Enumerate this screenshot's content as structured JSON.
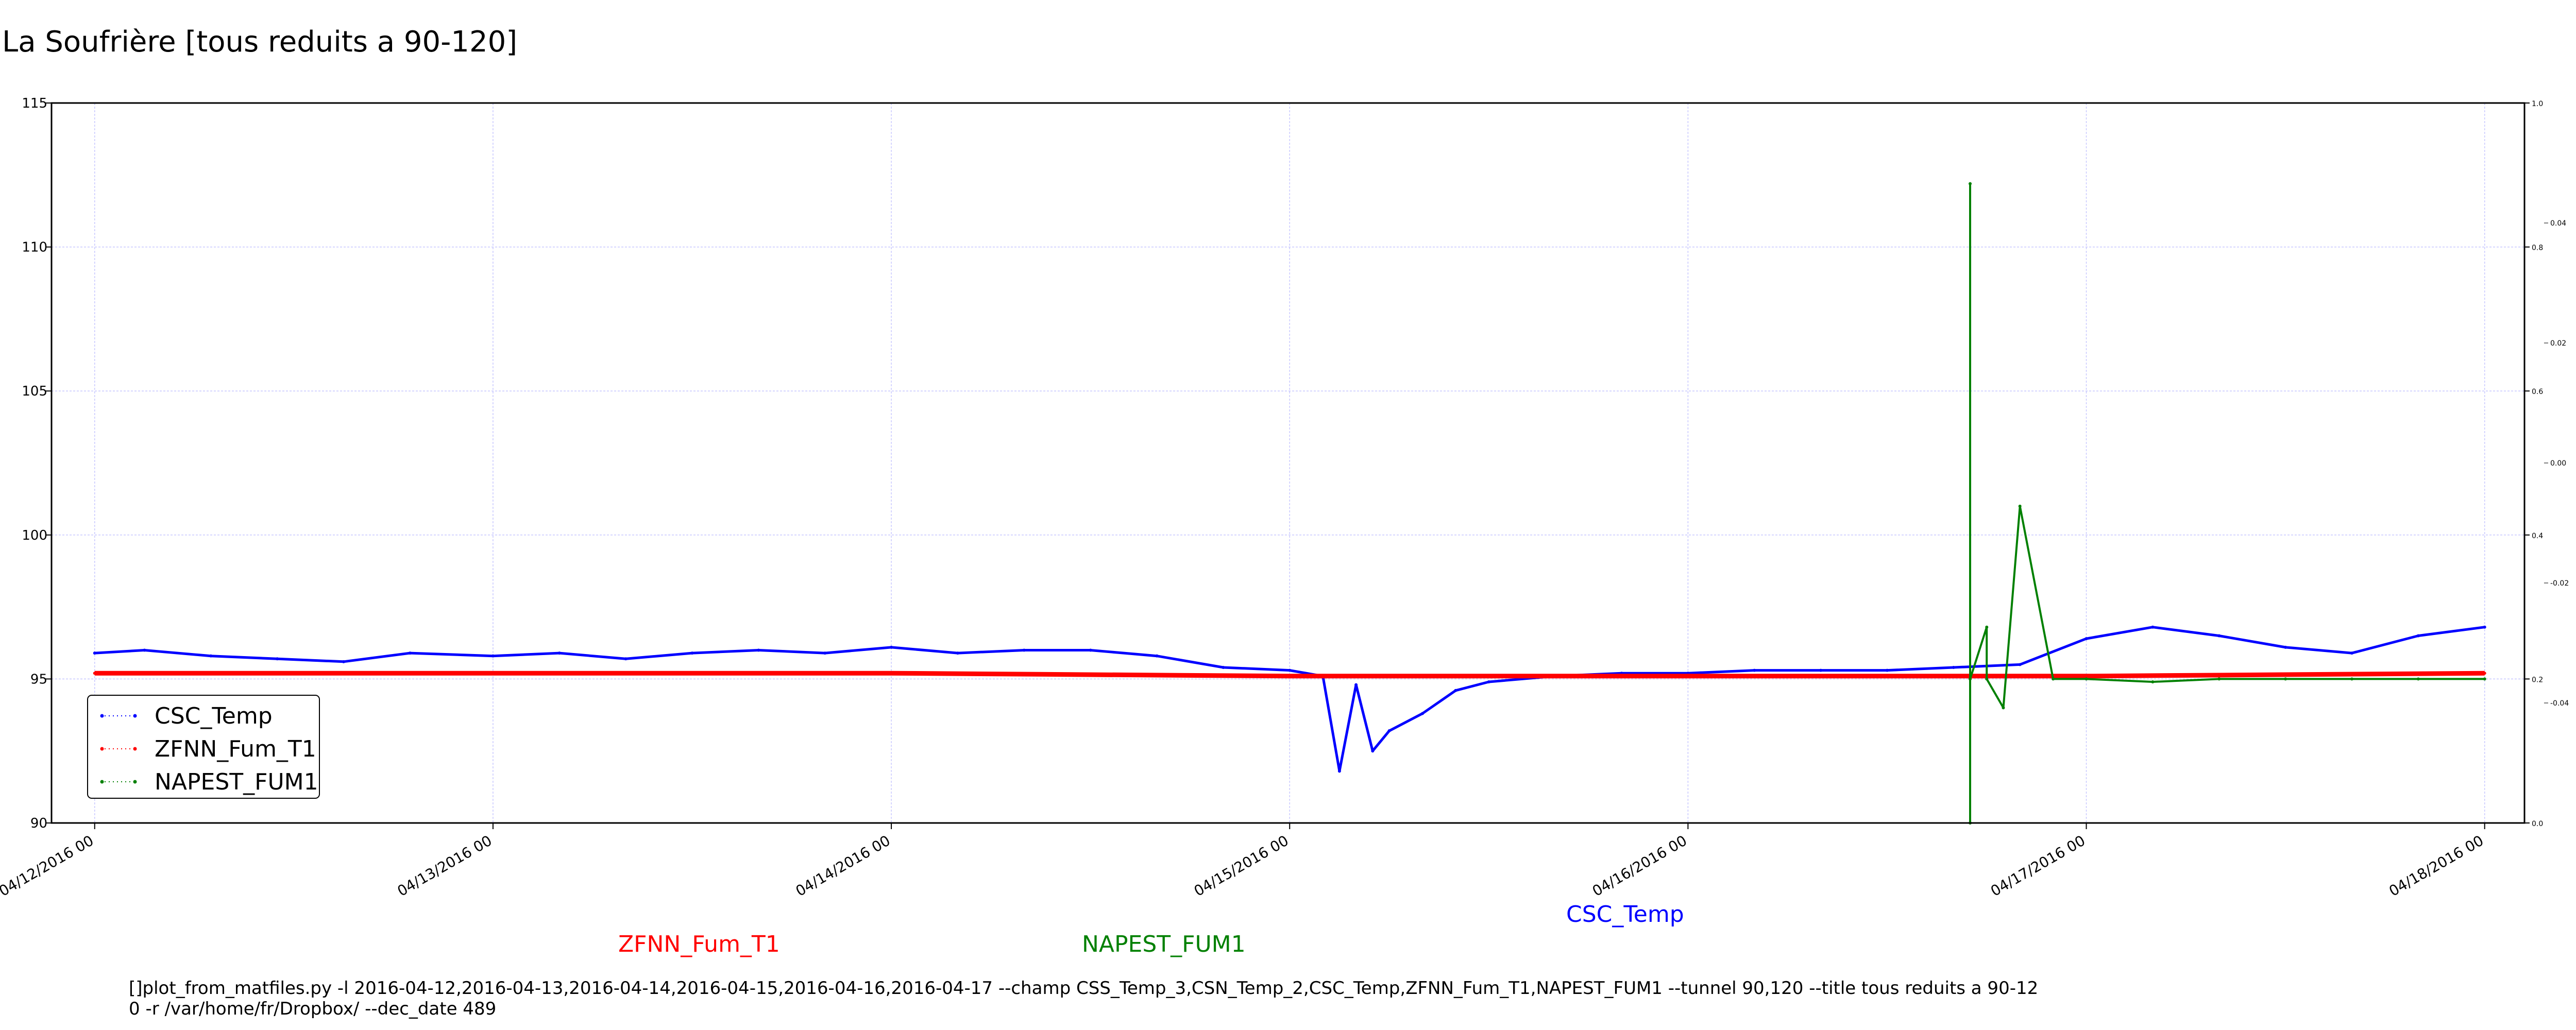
{
  "title": "La Soufrière [tous reduits a 90-120]",
  "chart_data": {
    "type": "line",
    "title": "La Soufrière [tous reduits a 90-120]",
    "xlim": [
      "04/11/2016 21:24",
      "04/18/2016 02:24"
    ],
    "ylim": [
      90,
      115
    ],
    "x_ticks": [
      "04/12/2016 00",
      "04/13/2016 00",
      "04/14/2016 00",
      "04/15/2016 00",
      "04/16/2016 00",
      "04/17/2016 00",
      "04/18/2016 00"
    ],
    "y_ticks": [
      90,
      95,
      100,
      105,
      110,
      115
    ],
    "right_axis_a": {
      "ticks": [
        "0.0",
        "0.2",
        "0.4",
        "0.6",
        "0.8",
        "1.0"
      ],
      "range": [
        0,
        1
      ]
    },
    "right_axis_b": {
      "ticks": [
        "0.04",
        "0.02",
        "0.00",
        "-0.02",
        "-0.04"
      ],
      "values": [
        0.04,
        0.02,
        0.0,
        -0.02,
        -0.04
      ],
      "range": [
        -0.06,
        0.06
      ]
    },
    "grid": true,
    "legend_position": "lower-left",
    "series": [
      {
        "name": "CSC_Temp",
        "color": "#0000ff",
        "x": [
          "04/12/2016 00",
          "04/12/2016 03",
          "04/12/2016 07",
          "04/12/2016 11",
          "04/12/2016 15",
          "04/12/2016 19",
          "04/13/2016 00",
          "04/13/2016 04",
          "04/13/2016 08",
          "04/13/2016 12",
          "04/13/2016 16",
          "04/13/2016 20",
          "04/14/2016 00",
          "04/14/2016 04",
          "04/14/2016 08",
          "04/14/2016 12",
          "04/14/2016 16",
          "04/14/2016 20",
          "04/15/2016 00",
          "04/15/2016 02",
          "04/15/2016 03",
          "04/15/2016 04",
          "04/15/2016 05",
          "04/15/2016 06",
          "04/15/2016 08",
          "04/15/2016 10",
          "04/15/2016 12",
          "04/15/2016 16",
          "04/15/2016 20",
          "04/16/2016 00",
          "04/16/2016 04",
          "04/16/2016 08",
          "04/16/2016 12",
          "04/16/2016 16",
          "04/16/2016 20",
          "04/17/2016 00",
          "04/17/2016 04",
          "04/17/2016 08",
          "04/17/2016 12",
          "04/17/2016 16",
          "04/17/2016 20",
          "04/18/2016 00"
        ],
        "y": [
          95.9,
          96.0,
          95.8,
          95.7,
          95.6,
          95.9,
          95.8,
          95.9,
          95.7,
          95.9,
          96.0,
          95.9,
          96.1,
          95.9,
          96.0,
          96.0,
          95.8,
          95.4,
          95.3,
          95.1,
          91.8,
          94.8,
          92.5,
          93.2,
          93.8,
          94.6,
          94.9,
          95.1,
          95.2,
          95.2,
          95.3,
          95.3,
          95.3,
          95.4,
          95.5,
          96.4,
          96.8,
          96.5,
          96.1,
          95.9,
          96.5,
          96.8
        ]
      },
      {
        "name": "ZFNN_Fum_T1",
        "color": "#ff0000",
        "x": [
          "04/12/2016 00",
          "04/13/2016 00",
          "04/14/2016 00",
          "04/15/2016 00",
          "04/16/2016 00",
          "04/17/2016 00",
          "04/18/2016 00"
        ],
        "y": [
          95.2,
          95.2,
          95.2,
          95.1,
          95.1,
          95.1,
          95.2
        ]
      },
      {
        "name": "NAPEST_FUM1",
        "color": "#008000",
        "x": [
          "04/16/2016 17",
          "04/16/2016 17",
          "04/16/2016 17",
          "04/16/2016 17",
          "04/16/2016 18",
          "04/16/2016 18",
          "04/16/2016 19",
          "04/16/2016 20",
          "04/16/2016 22",
          "04/17/2016 00",
          "04/17/2016 04",
          "04/17/2016 08",
          "04/17/2016 12",
          "04/17/2016 16",
          "04/17/2016 20",
          "04/18/2016 00"
        ],
        "y": [
          95.0,
          90.0,
          112.2,
          95.0,
          96.8,
          95.0,
          94.0,
          101.0,
          95.0,
          95.0,
          94.9,
          95.0,
          95.0,
          95.0,
          95.0,
          95.0
        ]
      }
    ],
    "bottom_labels": [
      {
        "text": "ZFNN_Fum_T1",
        "color": "#ff0000"
      },
      {
        "text": "NAPEST_FUM1",
        "color": "#008000"
      },
      {
        "text": "CSC_Temp",
        "color": "#0000ff"
      }
    ],
    "command_text_lines": [
      "[]plot_from_matfiles.py -l 2016-04-12,2016-04-13,2016-04-14,2016-04-15,2016-04-16,2016-04-17 --champ CSS_Temp_3,CSN_Temp_2,CSC_Temp,ZFNN_Fum_T1,NAPEST_FUM1 --tunnel 90,120 --title tous reduits a 90-12",
      "0 -r /var/home/fr/Dropbox/ --dec_date 489"
    ]
  }
}
